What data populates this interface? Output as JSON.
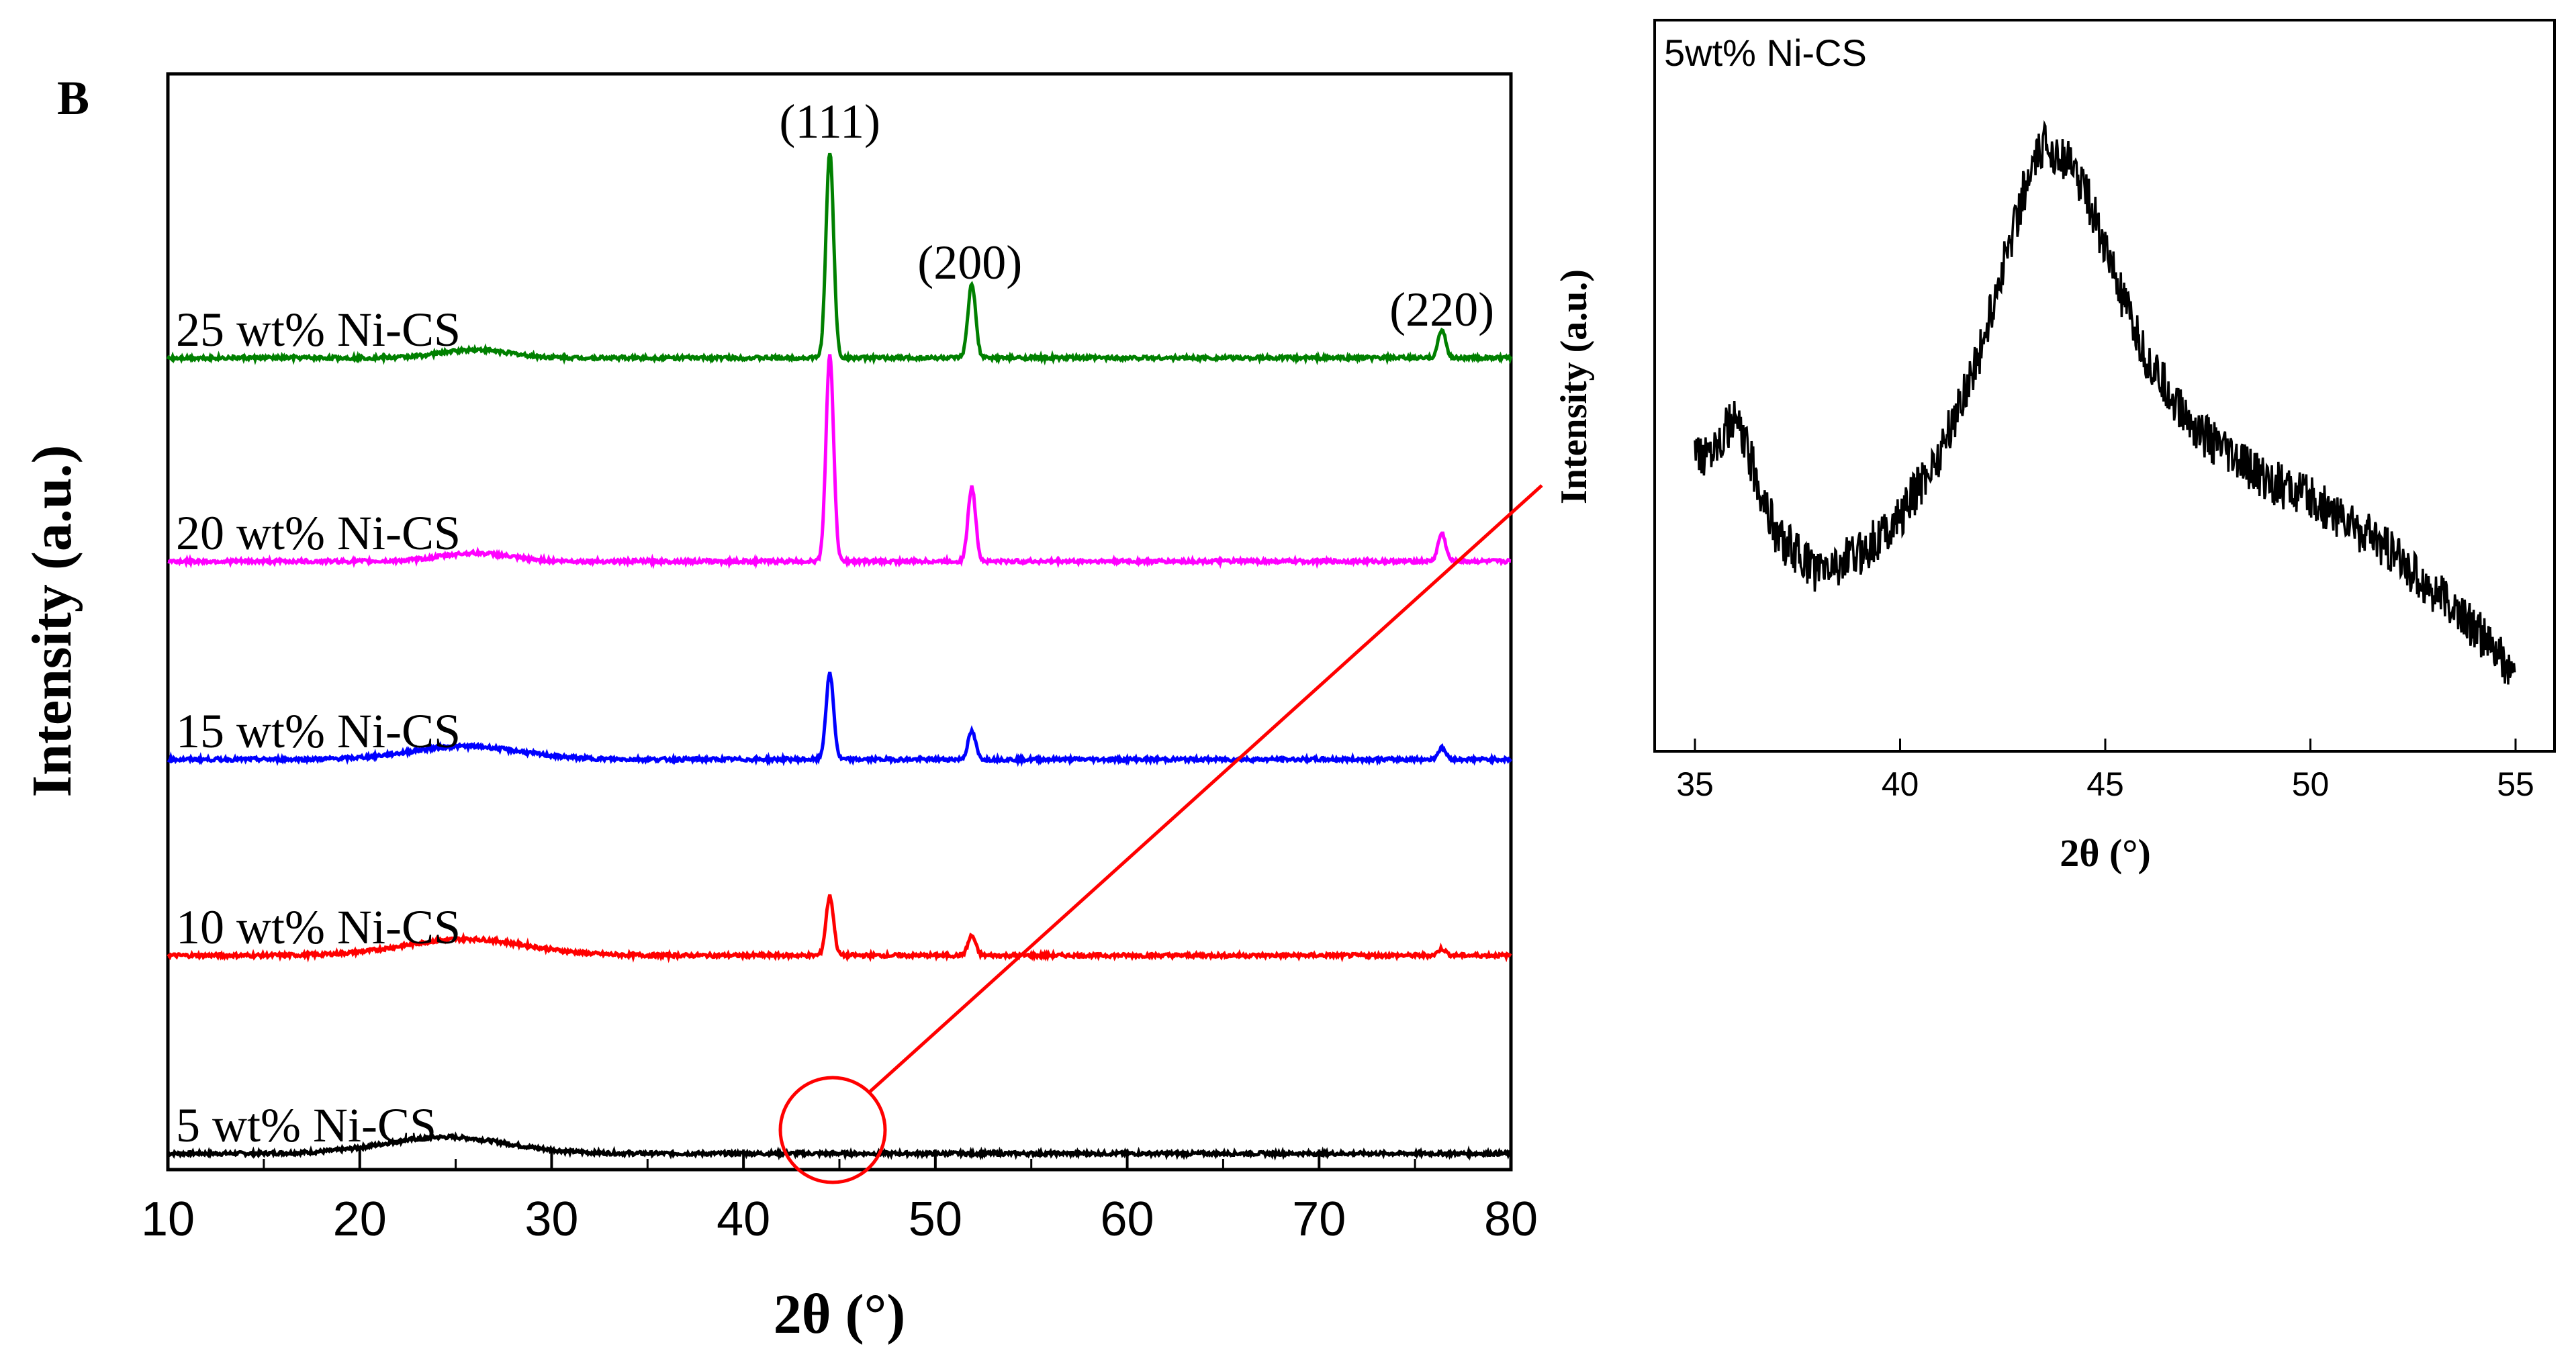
{
  "panel_label": "B",
  "chart_data": [
    {
      "type": "line",
      "title": "",
      "xlabel": "2θ (°)",
      "ylabel": "Intensity (a.u.)",
      "xlim": [
        10,
        80
      ],
      "xticks": [
        10,
        20,
        30,
        40,
        50,
        60,
        70,
        80
      ],
      "yticks": "none (stacked, offset traces)",
      "peak_labels": [
        {
          "text": "(111)",
          "x": 44.5
        },
        {
          "text": "(200)",
          "x": 51.8
        },
        {
          "text": "(220)",
          "x": 76.4
        }
      ],
      "series": [
        {
          "name": "5 wt% Ni-CS",
          "color": "#000000",
          "peaks": [],
          "broad_hump": {
            "center": 24.5,
            "height": 0.1,
            "width": 4.5
          }
        },
        {
          "name": "10 wt% Ni-CS",
          "color": "#ff0000",
          "peaks": [
            {
              "x": 44.5,
              "height": 0.36
            },
            {
              "x": 51.9,
              "height": 0.12
            },
            {
              "x": 76.4,
              "height": 0.04
            }
          ],
          "broad_hump": {
            "center": 25.5,
            "height": 0.1,
            "width": 4.5
          }
        },
        {
          "name": "15 wt% Ni-CS",
          "color": "#0000ff",
          "peaks": [
            {
              "x": 44.5,
              "height": 0.52
            },
            {
              "x": 51.9,
              "height": 0.17
            },
            {
              "x": 76.4,
              "height": 0.07
            }
          ],
          "broad_hump": {
            "center": 25.5,
            "height": 0.08,
            "width": 4.0
          }
        },
        {
          "name": "20 wt% Ni-CS",
          "color": "#ff00ff",
          "peaks": [
            {
              "x": 44.5,
              "height": 1.25
            },
            {
              "x": 51.9,
              "height": 0.45
            },
            {
              "x": 76.4,
              "height": 0.17
            }
          ],
          "broad_hump": {
            "center": 26.0,
            "height": 0.05,
            "width": 2.5
          }
        },
        {
          "name": "25 wt% Ni-CS",
          "color": "#008000",
          "peaks": [
            {
              "x": 44.5,
              "height": 1.25
            },
            {
              "x": 51.9,
              "height": 0.45
            },
            {
              "x": 76.4,
              "height": 0.17
            }
          ],
          "broad_hump": {
            "center": 26.0,
            "height": 0.05,
            "width": 2.5
          }
        }
      ],
      "annotation": "red circle at 2θ ≈ 44.5° on 5 wt% Ni-CS trace with connector line to inset"
    },
    {
      "type": "line",
      "title": "5wt% Ni-CS",
      "xlabel": "2θ (°)",
      "ylabel": "Intensity (a.u.)",
      "xlim": [
        35,
        55
      ],
      "xticks": [
        35,
        40,
        45,
        50,
        55
      ],
      "series": [
        {
          "name": "5wt% Ni-CS",
          "color": "#000000",
          "points": [
            [
              35,
              0.43
            ],
            [
              36,
              0.5
            ],
            [
              37,
              0.31
            ],
            [
              38,
              0.25
            ],
            [
              39,
              0.28
            ],
            [
              40,
              0.34
            ],
            [
              41,
              0.45
            ],
            [
              42,
              0.62
            ],
            [
              42.5,
              0.75
            ],
            [
              43,
              0.87
            ],
            [
              43.5,
              0.95
            ],
            [
              44,
              0.93
            ],
            [
              44.5,
              0.88
            ],
            [
              45,
              0.78
            ],
            [
              45.5,
              0.68
            ],
            [
              46,
              0.6
            ],
            [
              47,
              0.5
            ],
            [
              48,
              0.44
            ],
            [
              49,
              0.4
            ],
            [
              50,
              0.37
            ],
            [
              51,
              0.33
            ],
            [
              52,
              0.28
            ],
            [
              53,
              0.22
            ],
            [
              54,
              0.16
            ],
            [
              55,
              0.08
            ]
          ]
        }
      ]
    }
  ]
}
